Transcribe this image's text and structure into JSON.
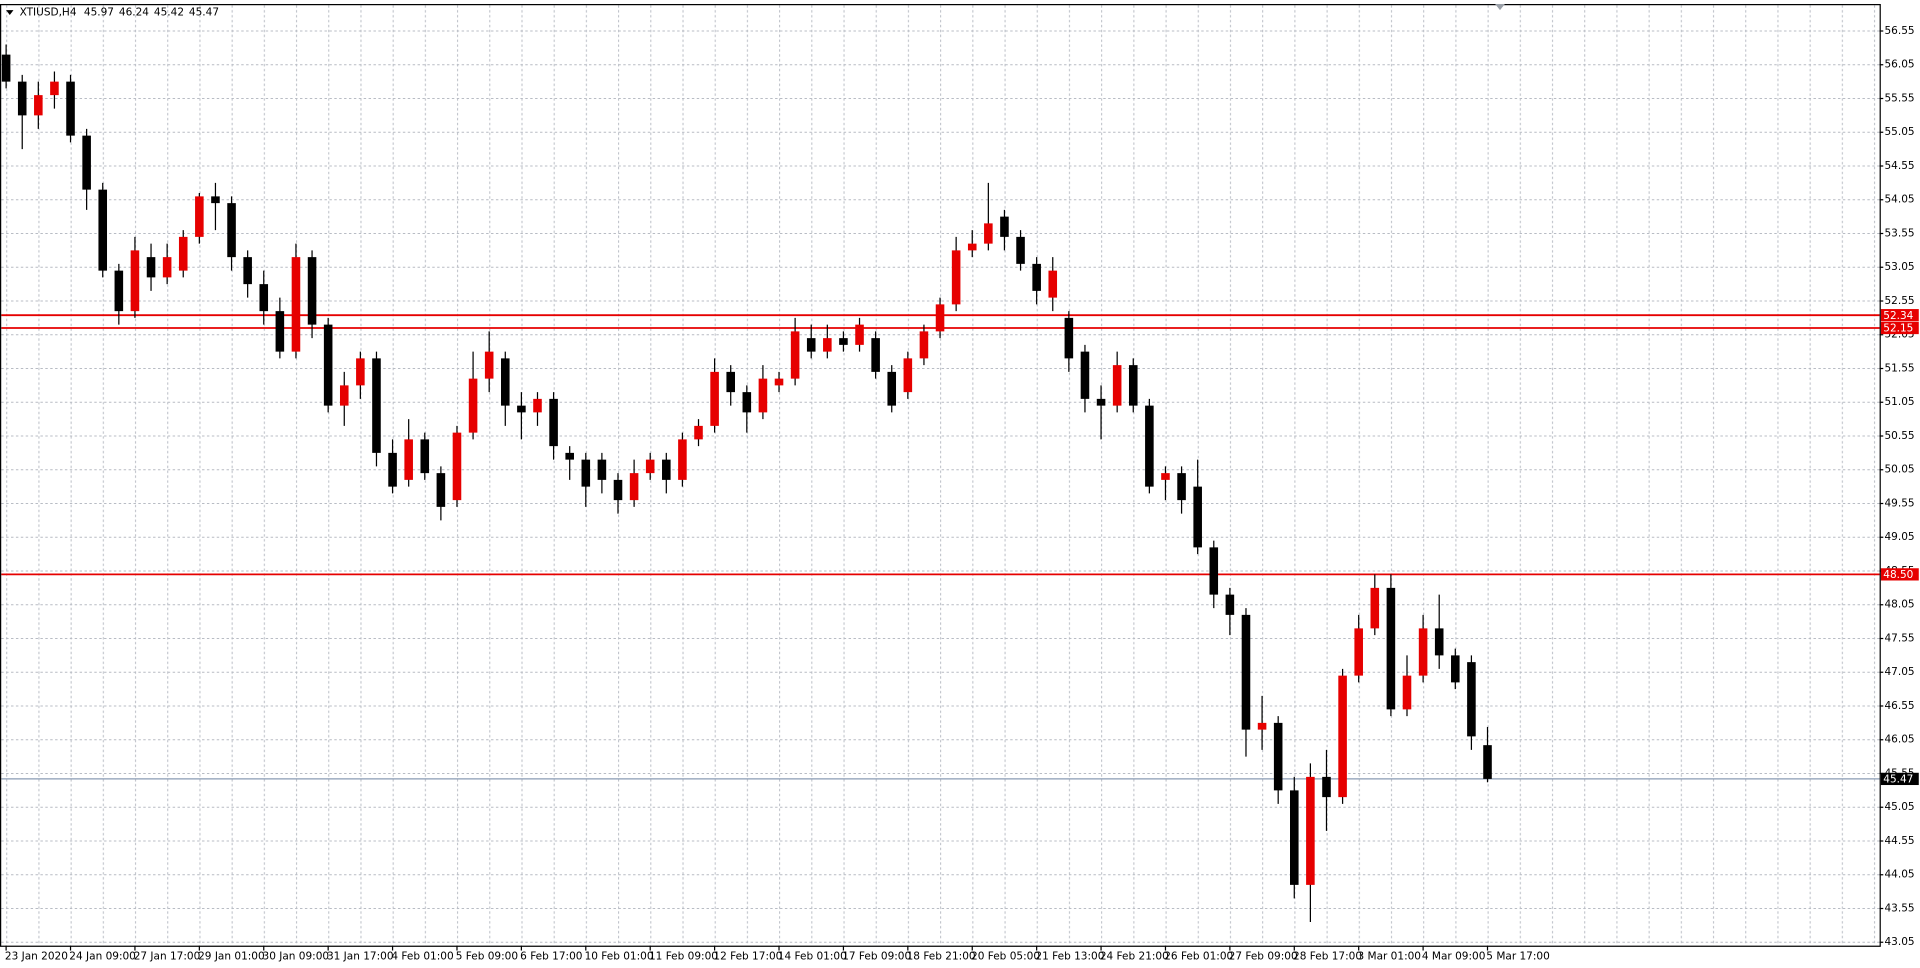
{
  "chart_data": {
    "type": "candlestick",
    "title": "XTIUSD,H4",
    "quote": [
      45.97,
      46.24,
      45.42,
      45.47
    ],
    "up_color": "#e60000",
    "down_color": "#000000",
    "grid": true,
    "categories": [
      "23 Jan 2020",
      null,
      null,
      null,
      "24 Jan 09:00",
      null,
      null,
      null,
      "27 Jan 17:00",
      null,
      null,
      null,
      "29 Jan 01:00",
      null,
      null,
      null,
      "30 Jan 09:00",
      null,
      null,
      null,
      "31 Jan 17:00",
      null,
      null,
      null,
      "4 Feb 01:00",
      null,
      null,
      null,
      "5 Feb 09:00",
      null,
      null,
      null,
      "6 Feb 17:00",
      null,
      null,
      null,
      "10 Feb 01:00",
      null,
      null,
      null,
      "11 Feb 09:00",
      null,
      null,
      null,
      "12 Feb 17:00",
      null,
      null,
      null,
      "14 Feb 01:00",
      null,
      null,
      null,
      "17 Feb 09:00",
      null,
      null,
      null,
      "18 Feb 21:00",
      null,
      null,
      null,
      "20 Feb 05:00",
      null,
      null,
      null,
      "21 Feb 13:00",
      null,
      null,
      null,
      "24 Feb 21:00",
      null,
      null,
      null,
      "26 Feb 01:00",
      null,
      null,
      null,
      "27 Feb 09:00",
      null,
      null,
      null,
      "28 Feb 17:00",
      null,
      null,
      null,
      "3 Mar 01:00",
      null,
      null,
      null,
      "4 Mar 09:00",
      null,
      null,
      null,
      "5 Mar 17:00"
    ],
    "open": [
      56.2,
      55.8,
      55.3,
      55.6,
      55.8,
      55.0,
      54.2,
      53.0,
      52.4,
      53.2,
      52.9,
      53.0,
      53.5,
      54.1,
      54.0,
      53.2,
      52.8,
      52.4,
      51.8,
      53.2,
      52.2,
      51.0,
      51.3,
      51.7,
      50.3,
      49.9,
      50.5,
      50.0,
      49.6,
      50.6,
      51.4,
      51.7,
      51.0,
      50.9,
      51.1,
      50.3,
      50.2,
      50.2,
      49.9,
      49.6,
      50.0,
      50.2,
      49.9,
      50.5,
      50.7,
      51.5,
      51.2,
      50.9,
      51.3,
      51.4,
      52.0,
      51.8,
      52.0,
      51.9,
      52.0,
      51.5,
      51.2,
      51.7,
      52.1,
      52.5,
      53.3,
      53.4,
      53.8,
      53.5,
      53.1,
      52.6,
      52.3,
      51.8,
      51.1,
      51.0,
      51.6,
      51.0,
      49.9,
      50.0,
      49.8,
      48.9,
      48.2,
      47.9,
      46.2,
      46.3,
      45.3,
      43.9,
      45.5,
      45.2,
      47.0,
      47.7,
      48.3,
      46.5,
      47.0,
      47.7,
      47.3,
      47.2,
      45.97
    ],
    "high": [
      56.35,
      55.9,
      55.8,
      55.95,
      55.9,
      55.1,
      54.3,
      53.1,
      53.5,
      53.4,
      53.4,
      53.6,
      54.15,
      54.3,
      54.1,
      53.3,
      53.0,
      52.6,
      53.4,
      53.3,
      52.3,
      51.5,
      51.8,
      51.8,
      50.5,
      50.8,
      50.6,
      50.1,
      50.7,
      51.8,
      52.1,
      51.8,
      51.2,
      51.2,
      51.2,
      50.4,
      50.3,
      50.3,
      50.0,
      50.2,
      50.3,
      50.3,
      50.6,
      50.8,
      51.7,
      51.6,
      51.3,
      51.6,
      51.5,
      52.3,
      52.2,
      52.2,
      52.1,
      52.3,
      52.1,
      51.6,
      51.8,
      52.2,
      52.6,
      53.5,
      53.6,
      54.3,
      53.9,
      53.6,
      53.2,
      53.2,
      52.4,
      51.9,
      51.3,
      51.8,
      51.7,
      51.1,
      50.1,
      50.1,
      50.2,
      49.0,
      48.3,
      48.0,
      46.7,
      46.4,
      45.5,
      45.7,
      45.9,
      47.1,
      47.9,
      48.5,
      48.5,
      47.3,
      47.9,
      48.2,
      47.4,
      47.3,
      46.24
    ],
    "low": [
      55.7,
      54.8,
      55.1,
      55.4,
      54.9,
      53.9,
      52.9,
      52.2,
      52.3,
      52.7,
      52.8,
      52.9,
      53.4,
      53.6,
      53.0,
      52.6,
      52.2,
      51.7,
      51.7,
      52.0,
      50.9,
      50.7,
      51.1,
      50.1,
      49.7,
      49.8,
      49.9,
      49.3,
      49.5,
      50.5,
      51.2,
      50.7,
      50.5,
      50.7,
      50.2,
      49.9,
      49.5,
      49.7,
      49.4,
      49.5,
      49.9,
      49.7,
      49.8,
      50.4,
      50.6,
      51.0,
      50.6,
      50.8,
      51.2,
      51.3,
      51.7,
      51.7,
      51.8,
      51.8,
      51.4,
      50.9,
      51.1,
      51.6,
      52.0,
      52.4,
      53.2,
      53.3,
      53.3,
      53.0,
      52.5,
      52.4,
      51.5,
      50.9,
      50.5,
      50.9,
      50.9,
      49.7,
      49.6,
      49.4,
      48.8,
      48.0,
      47.6,
      45.8,
      45.9,
      45.1,
      43.7,
      43.35,
      44.7,
      45.1,
      46.9,
      47.6,
      46.4,
      46.4,
      46.9,
      47.1,
      46.8,
      45.9,
      45.42
    ],
    "close": [
      55.8,
      55.3,
      55.6,
      55.8,
      55.0,
      54.2,
      53.0,
      52.4,
      53.3,
      52.9,
      53.2,
      53.5,
      54.1,
      54.0,
      53.2,
      52.8,
      52.4,
      51.8,
      53.2,
      52.2,
      51.0,
      51.3,
      51.7,
      50.3,
      49.8,
      50.5,
      50.0,
      49.5,
      50.6,
      51.4,
      51.8,
      51.0,
      50.9,
      51.1,
      50.4,
      50.2,
      49.8,
      49.9,
      49.6,
      50.0,
      50.2,
      49.9,
      50.5,
      50.7,
      51.5,
      51.2,
      50.9,
      51.4,
      51.4,
      52.1,
      51.8,
      52.0,
      51.9,
      52.2,
      51.5,
      51.0,
      51.7,
      52.1,
      52.5,
      53.3,
      53.4,
      53.7,
      53.5,
      53.1,
      52.7,
      53.0,
      51.7,
      51.1,
      51.0,
      51.6,
      51.0,
      49.8,
      50.0,
      49.6,
      48.9,
      48.2,
      47.9,
      46.2,
      46.3,
      45.3,
      43.9,
      45.5,
      45.2,
      47.0,
      47.7,
      48.3,
      46.5,
      47.0,
      47.7,
      47.3,
      46.9,
      46.1,
      45.47
    ],
    "levels": [
      {
        "value": 52.34,
        "color": "#e60000"
      },
      {
        "value": 52.15,
        "color": "#e60000"
      },
      {
        "value": 48.5,
        "label": "48.50",
        "color": "#e60000"
      }
    ],
    "price_line": {
      "value": 45.47,
      "color": "#8a9bb4"
    },
    "ylim": [
      43.0,
      56.95
    ],
    "yticks": [
      43.05,
      43.55,
      44.05,
      44.55,
      45.05,
      45.55,
      46.05,
      46.55,
      47.05,
      47.55,
      48.05,
      48.55,
      49.05,
      49.55,
      50.05,
      50.55,
      51.05,
      51.55,
      52.05,
      52.55,
      53.05,
      53.55,
      54.05,
      54.55,
      55.05,
      55.55,
      56.05,
      56.55
    ]
  }
}
